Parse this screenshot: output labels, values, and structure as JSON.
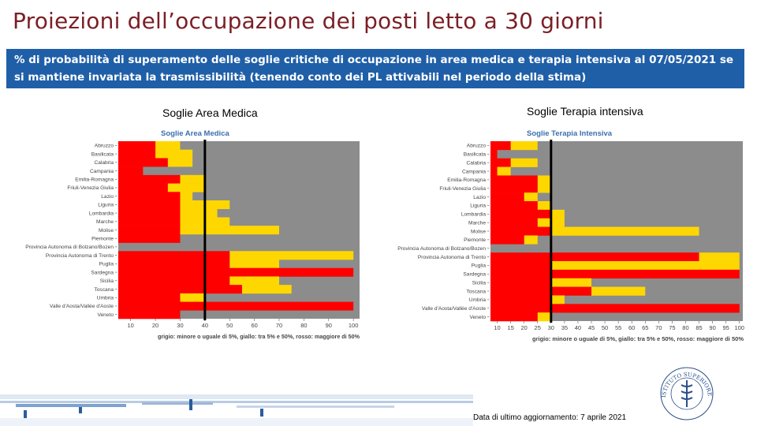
{
  "header": {
    "title": "Proiezioni dell’occupazione dei posti letto a 30 giorni",
    "subtitle": "% di probabilità di superamento delle soglie critiche di occupazione in area medica e terapia intensiva al 07/05/2021 se si mantiene invariata la trasmissibilità (tenendo conto dei PL attivabili nel periodo della stima)"
  },
  "colors": {
    "red": "#ff0000",
    "yellow": "#ffd700",
    "gray": "#8c8c8c",
    "banner": "#1f5fa8",
    "title": "#7b1f26"
  },
  "footer": {
    "update_text": "Data di ultimo aggiornamento: 7 aprile 2021"
  },
  "logo": {
    "text": "ISTITUTO SUPERIORE DI SANITÀ"
  },
  "chart_data": [
    {
      "type": "heatmap",
      "panel_label": "Soglie Area Medica",
      "title": "Soglie Area Medica",
      "x_ticks": [
        "10",
        "20",
        "30",
        "40",
        "50",
        "60",
        "70",
        "80",
        "90",
        "100"
      ],
      "xlim": [
        5,
        102.5
      ],
      "current_line": 40,
      "legend": "grigio: minore o uguale di 5%, giallo: tra 5% e 50%, rosso: maggiore di 50%",
      "rows": [
        {
          "region": "Abruzzo",
          "red": 20,
          "yellow": 30
        },
        {
          "region": "Basilicata",
          "red": 20,
          "yellow": 35
        },
        {
          "region": "Calabria",
          "red": 25,
          "yellow": 35
        },
        {
          "region": "Campania",
          "red": 15,
          "yellow": 15
        },
        {
          "region": "Emilia-Romagna",
          "red": 30,
          "yellow": 40
        },
        {
          "region": "Friuli-Venezia Giulia",
          "red": 25,
          "yellow": 40
        },
        {
          "region": "Lazio",
          "red": 30,
          "yellow": 35
        },
        {
          "region": "Liguria",
          "red": 30,
          "yellow": 50
        },
        {
          "region": "Lombardia",
          "red": 30,
          "yellow": 45
        },
        {
          "region": "Marche",
          "red": 30,
          "yellow": 50
        },
        {
          "region": "Molise",
          "red": 30,
          "yellow": 70
        },
        {
          "region": "Piemonte",
          "red": 30,
          "yellow": 30
        },
        {
          "region": "Provincia Autonoma di Bolzano/Bozen",
          "red": 5,
          "yellow": 5
        },
        {
          "region": "Provincia Autonoma di Trento",
          "red": 50,
          "yellow": 100
        },
        {
          "region": "Puglia",
          "red": 50,
          "yellow": 70
        },
        {
          "region": "Sardegna",
          "red": 100,
          "yellow": 100
        },
        {
          "region": "Sicilia",
          "red": 50,
          "yellow": 70
        },
        {
          "region": "Toscana",
          "red": 55,
          "yellow": 75
        },
        {
          "region": "Umbria",
          "red": 30,
          "yellow": 40
        },
        {
          "region": "Valle d'Aosta/Vallée d'Aoste",
          "red": 100,
          "yellow": 100
        },
        {
          "region": "Veneto",
          "red": 30,
          "yellow": 30
        }
      ]
    },
    {
      "type": "heatmap",
      "panel_label": "Soglie Terapia intensiva",
      "title": "Soglie Terapia Intensiva",
      "x_ticks": [
        "10",
        "15",
        "20",
        "25",
        "30",
        "35",
        "40",
        "45",
        "50",
        "55",
        "60",
        "65",
        "70",
        "75",
        "80",
        "85",
        "90",
        "95",
        "100"
      ],
      "xlim": [
        7.5,
        101.25
      ],
      "current_line": 30,
      "legend": "grigio: minore o uguale di 5%, giallo: tra 5% e 50%, rosso: maggiore di 50%",
      "rows": [
        {
          "region": "Abruzzo",
          "red": 15,
          "yellow": 25
        },
        {
          "region": "Basilicata",
          "red": 10,
          "yellow": 10
        },
        {
          "region": "Calabria",
          "red": 15,
          "yellow": 25
        },
        {
          "region": "Campania",
          "red": 10,
          "yellow": 15
        },
        {
          "region": "Emilia-Romagna",
          "red": 25,
          "yellow": 30
        },
        {
          "region": "Friuli-Venezia Giulia",
          "red": 25,
          "yellow": 30
        },
        {
          "region": "Lazio",
          "red": 20,
          "yellow": 25
        },
        {
          "region": "Liguria",
          "red": 25,
          "yellow": 30
        },
        {
          "region": "Lombardia",
          "red": 30,
          "yellow": 35
        },
        {
          "region": "Marche",
          "red": 25,
          "yellow": 35
        },
        {
          "region": "Molise",
          "red": 30,
          "yellow": 85
        },
        {
          "region": "Piemonte",
          "red": 20,
          "yellow": 25
        },
        {
          "region": "Provincia Autonoma di Bolzano/Bozen",
          "red": 7.5,
          "yellow": 7.5
        },
        {
          "region": "Provincia Autonoma di Trento",
          "red": 85,
          "yellow": 100
        },
        {
          "region": "Puglia",
          "red": 30,
          "yellow": 100
        },
        {
          "region": "Sardegna",
          "red": 100,
          "yellow": 100
        },
        {
          "region": "Sicilia",
          "red": 30,
          "yellow": 45
        },
        {
          "region": "Toscana",
          "red": 45,
          "yellow": 65
        },
        {
          "region": "Umbria",
          "red": 30,
          "yellow": 35
        },
        {
          "region": "Valle d'Aosta/Vallée d'Aoste",
          "red": 100,
          "yellow": 100
        },
        {
          "region": "Veneto",
          "red": 25,
          "yellow": 30
        }
      ]
    }
  ]
}
